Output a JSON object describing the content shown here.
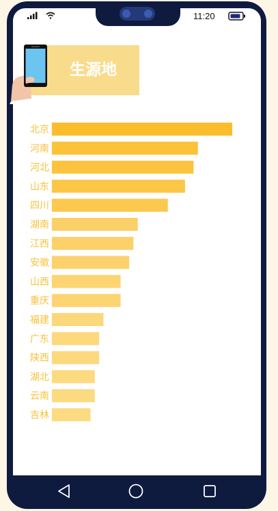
{
  "status_bar": {
    "time": "11:20",
    "signal_icon": "cellular-signal-icon",
    "wifi_icon": "wifi-icon",
    "battery_icon": "battery-icon"
  },
  "header": {
    "title": "生源地",
    "illustration": "phone-in-hand-icon",
    "background_color": "#f9db8c"
  },
  "chart_data": {
    "type": "bar",
    "orientation": "horizontal",
    "title": "生源地",
    "categories": [
      "北京",
      "河南",
      "河北",
      "山东",
      "四川",
      "湖南",
      "江西",
      "安徽",
      "山西",
      "重庆",
      "福建",
      "广东",
      "陕西",
      "湖北",
      "云南",
      "吉林"
    ],
    "values": [
      42,
      34,
      33,
      31,
      27,
      20,
      19,
      18,
      16,
      16,
      12,
      11,
      11,
      10,
      10,
      9
    ],
    "xlim": [
      0,
      42
    ],
    "grid": false,
    "legend": "none",
    "label_color": "#f8c23a",
    "bar_colors": [
      "#fbbd2c",
      "#fcc23a",
      "#fcc43e",
      "#fcc646",
      "#fcc84e",
      "#fcd068",
      "#fcd16a",
      "#fcd26d",
      "#fcd472",
      "#fcd472",
      "#fcd87b",
      "#fcd97d",
      "#fcd97d",
      "#fcda80",
      "#fcda80",
      "#fcdb82"
    ]
  },
  "nav_bar": {
    "back_icon": "back-triangle-icon",
    "home_icon": "home-circle-icon",
    "recents_icon": "recents-square-icon"
  }
}
